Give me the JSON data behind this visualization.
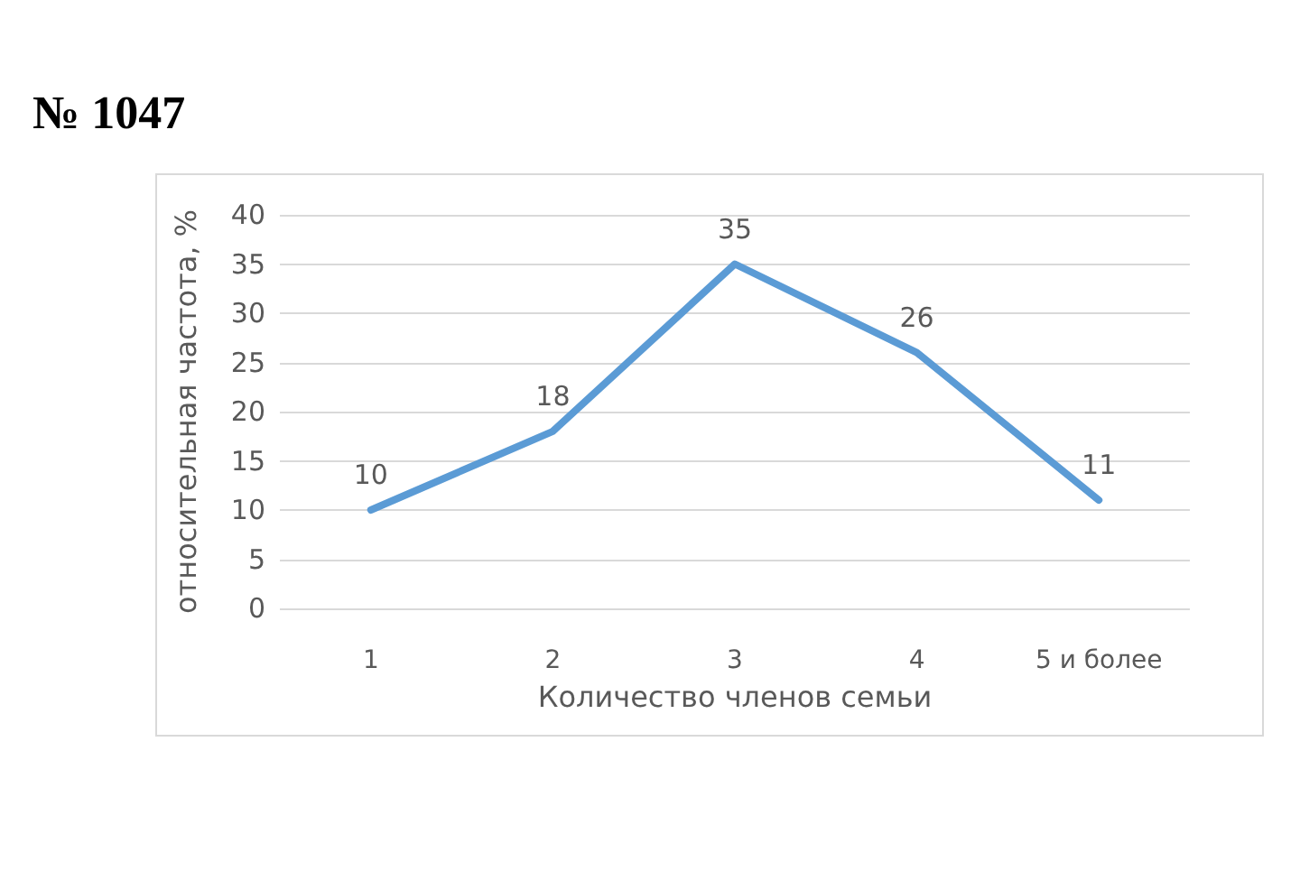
{
  "chart_data": {
    "type": "line",
    "title": "№ 1047",
    "xlabel": "Количество членов семьи",
    "ylabel": "относительная частота, %",
    "categories": [
      "1",
      "2",
      "3",
      "4",
      "5 и более"
    ],
    "series": [
      {
        "color": "#5b9bd5",
        "values": [
          10,
          18,
          35,
          26,
          11
        ]
      }
    ],
    "ylim": [
      0,
      40
    ],
    "yticks": [
      0,
      5,
      10,
      15,
      20,
      25,
      30,
      35,
      40
    ],
    "grid": "y",
    "data_labels": true,
    "marker": "none",
    "line_style": "solid"
  }
}
